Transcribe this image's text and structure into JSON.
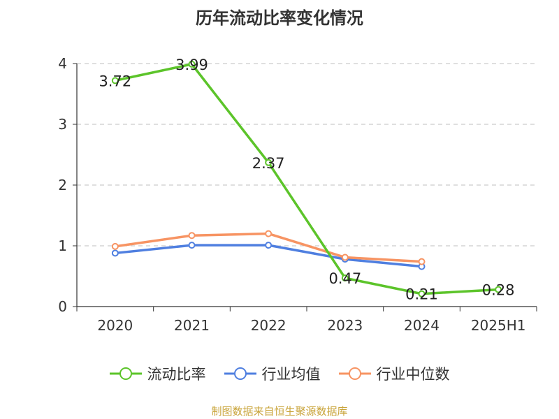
{
  "title": "历年流动比率变化情况",
  "source": "制图数据来自恒生聚源数据库",
  "colors": {
    "current_ratio": "#5cc42a",
    "industry_avg": "#4f7fe0",
    "industry_median": "#f79463"
  },
  "chart_data": {
    "type": "line",
    "title": "历年流动比率变化情况",
    "categories": [
      "2020",
      "2021",
      "2022",
      "2023",
      "2024",
      "2025H1"
    ],
    "ylim": [
      0,
      4
    ],
    "yticks": [
      0,
      1,
      2,
      3,
      4
    ],
    "grid": true,
    "legend_position": "bottom",
    "series": [
      {
        "name": "流动比率",
        "values": [
          3.72,
          3.99,
          2.37,
          0.47,
          0.21,
          0.28
        ],
        "labels": [
          "3.72",
          "3.99",
          "2.37",
          "0.47",
          "0.21",
          "0.28"
        ]
      },
      {
        "name": "行业均值",
        "values": [
          0.88,
          1.01,
          1.01,
          0.78,
          0.66,
          null
        ]
      },
      {
        "name": "行业中位数",
        "values": [
          0.99,
          1.17,
          1.2,
          0.81,
          0.74,
          null
        ]
      }
    ]
  }
}
